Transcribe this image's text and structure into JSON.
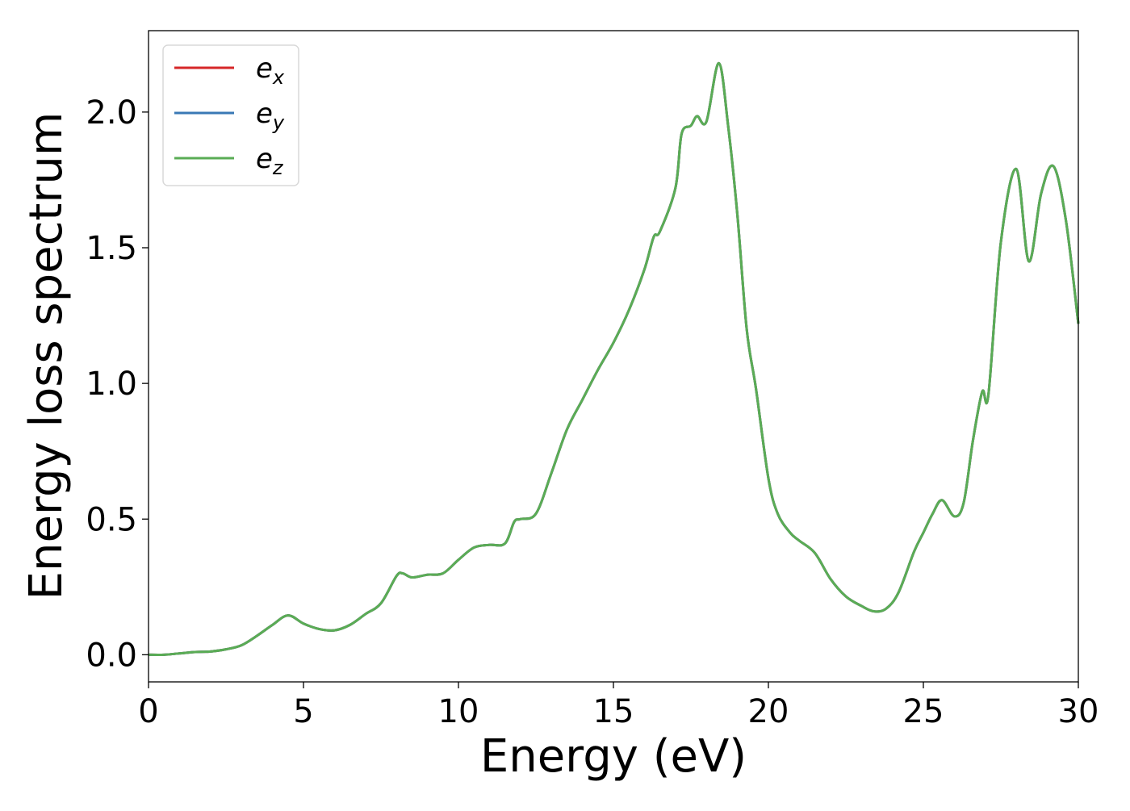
{
  "chart_data": {
    "type": "line",
    "title": "",
    "xlabel": "Energy (eV)",
    "ylabel": "Energy loss spectrum",
    "xlim": [
      0,
      30
    ],
    "ylim": [
      -0.1,
      2.3
    ],
    "xticks": [
      0,
      5,
      10,
      15,
      20,
      25,
      30
    ],
    "xtick_labels": [
      "0",
      "5",
      "10",
      "15",
      "20",
      "25",
      "30"
    ],
    "yticks": [
      0.0,
      0.5,
      1.0,
      1.5,
      2.0
    ],
    "ytick_labels": [
      "0.0",
      "0.5",
      "1.0",
      "1.5",
      "2.0"
    ],
    "grid": false,
    "legend_position": "top-left",
    "x": [
      0,
      0.5,
      1,
      1.5,
      2,
      2.5,
      3,
      3.5,
      4,
      4.5,
      5,
      5.5,
      6,
      6.5,
      7,
      7.5,
      8,
      8.2,
      8.5,
      9,
      9.5,
      10,
      10.5,
      11,
      11.5,
      11.8,
      12,
      12.5,
      13,
      13.5,
      14,
      14.5,
      15,
      15.5,
      16,
      16.3,
      16.5,
      17,
      17.2,
      17.5,
      17.7,
      18,
      18.4,
      18.7,
      19,
      19.3,
      19.6,
      20,
      20.3,
      20.7,
      21,
      21.5,
      22,
      22.5,
      23,
      23.4,
      23.8,
      24.2,
      24.7,
      25,
      25.3,
      25.6,
      26,
      26.3,
      26.6,
      26.9,
      27.1,
      27.5,
      28,
      28.4,
      28.8,
      29.2,
      29.6,
      30
    ],
    "series": [
      {
        "name": "e_x",
        "label_base": "e",
        "label_sub": "x",
        "color": "#d62728",
        "values": [
          0.0,
          0.0,
          0.005,
          0.01,
          0.012,
          0.02,
          0.035,
          0.07,
          0.11,
          0.145,
          0.115,
          0.095,
          0.09,
          0.11,
          0.15,
          0.19,
          0.29,
          0.3,
          0.285,
          0.295,
          0.3,
          0.35,
          0.395,
          0.405,
          0.41,
          0.49,
          0.5,
          0.52,
          0.67,
          0.83,
          0.94,
          1.05,
          1.15,
          1.27,
          1.42,
          1.54,
          1.56,
          1.72,
          1.92,
          1.95,
          1.985,
          1.965,
          2.18,
          1.95,
          1.62,
          1.2,
          0.98,
          0.65,
          0.52,
          0.45,
          0.42,
          0.375,
          0.28,
          0.215,
          0.18,
          0.16,
          0.17,
          0.23,
          0.38,
          0.45,
          0.52,
          0.57,
          0.51,
          0.56,
          0.79,
          0.97,
          0.96,
          1.52,
          1.79,
          1.45,
          1.7,
          1.8,
          1.6,
          1.22
        ]
      },
      {
        "name": "e_y",
        "label_base": "e",
        "label_sub": "y",
        "color": "#3a78b5",
        "values": [
          0.0,
          0.0,
          0.005,
          0.01,
          0.012,
          0.02,
          0.035,
          0.07,
          0.11,
          0.145,
          0.115,
          0.095,
          0.09,
          0.11,
          0.15,
          0.19,
          0.29,
          0.3,
          0.285,
          0.295,
          0.3,
          0.35,
          0.395,
          0.405,
          0.41,
          0.49,
          0.5,
          0.52,
          0.67,
          0.83,
          0.94,
          1.05,
          1.15,
          1.27,
          1.42,
          1.54,
          1.56,
          1.72,
          1.92,
          1.95,
          1.985,
          1.965,
          2.18,
          1.95,
          1.62,
          1.2,
          0.98,
          0.65,
          0.52,
          0.45,
          0.42,
          0.375,
          0.28,
          0.215,
          0.18,
          0.16,
          0.17,
          0.23,
          0.38,
          0.45,
          0.52,
          0.57,
          0.51,
          0.56,
          0.79,
          0.97,
          0.96,
          1.52,
          1.79,
          1.45,
          1.7,
          1.8,
          1.6,
          1.22
        ]
      },
      {
        "name": "e_z",
        "label_base": "e",
        "label_sub": "z",
        "color": "#5aac55",
        "values": [
          0.0,
          0.0,
          0.005,
          0.01,
          0.012,
          0.02,
          0.035,
          0.07,
          0.11,
          0.145,
          0.115,
          0.095,
          0.09,
          0.11,
          0.15,
          0.19,
          0.29,
          0.3,
          0.285,
          0.295,
          0.3,
          0.35,
          0.395,
          0.405,
          0.41,
          0.49,
          0.5,
          0.52,
          0.67,
          0.83,
          0.94,
          1.05,
          1.15,
          1.27,
          1.42,
          1.54,
          1.56,
          1.72,
          1.92,
          1.95,
          1.985,
          1.965,
          2.18,
          1.95,
          1.62,
          1.2,
          0.98,
          0.65,
          0.52,
          0.45,
          0.42,
          0.375,
          0.28,
          0.215,
          0.18,
          0.16,
          0.17,
          0.23,
          0.38,
          0.45,
          0.52,
          0.57,
          0.51,
          0.56,
          0.79,
          0.97,
          0.96,
          1.52,
          1.79,
          1.45,
          1.7,
          1.8,
          1.6,
          1.22
        ]
      }
    ]
  }
}
